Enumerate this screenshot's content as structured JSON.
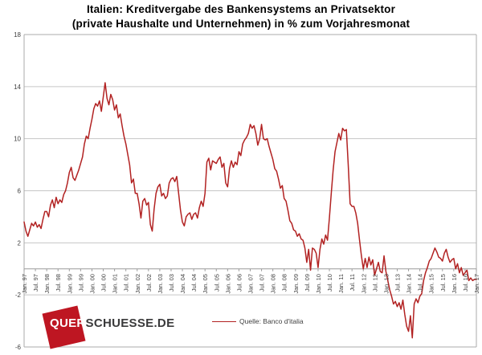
{
  "title": {
    "line1": "Italien: Kreditvergabe des Bankensystems an Privatsektor",
    "line2": "(private Haushalte und Unternehmen) in % zum Vorjahresmonat"
  },
  "legend": {
    "label": "Quelle: Banco d'italia"
  },
  "logo": {
    "part1": "QUER",
    "part2": "SCHUESSE.DE"
  },
  "colors": {
    "series": "#B22222",
    "grid": "#C6C6C6",
    "border": "#ABABAB",
    "zero_axis": "#9A9A9A",
    "axis_text": "#404040",
    "title_text": "#000000",
    "logo_red": "#BE1622",
    "logo_text": "#3A3A3B"
  },
  "chart_data": {
    "type": "line",
    "title": "Italien: Kreditvergabe des Bankensystems an Privatsektor (private Haushalte und Unternehmen) in % zum Vorjahresmonat",
    "xlabel": "",
    "ylabel": "",
    "ylim": [
      -6,
      18
    ],
    "y_ticks": [
      18,
      14,
      10,
      6,
      2,
      -2,
      -6
    ],
    "y_tick_labels": [
      "18",
      "14",
      "10",
      "6",
      "2",
      "-2",
      "-6"
    ],
    "grid": "horizontal",
    "legend_position": "bottom-center",
    "frequency": "monthly",
    "x_start": "Jan. 97",
    "x_end": "Jan. 17",
    "x_tick_labels": [
      "Jan. 97",
      "Jul. 97",
      "Jan. 98",
      "Jul. 98",
      "Jan. 99",
      "Jul. 99",
      "Jan. 00",
      "Jul. 00",
      "Jan. 01",
      "Jul. 01",
      "Jan. 02",
      "Jul. 02",
      "Jan. 03",
      "Jul. 03",
      "Jan. 04",
      "Jul. 04",
      "Jan. 05",
      "Jul. 05",
      "Jan. 06",
      "Jul. 06",
      "Jan. 07",
      "Jul. 07",
      "Jan. 08",
      "Jul. 08",
      "Jan. 09",
      "Jul. 09",
      "Jan. 10",
      "Jul. 10",
      "Jan. 11",
      "Jul. 11",
      "Jan. 12",
      "Jul. 12",
      "Jan. 13",
      "Jul. 13",
      "Jan. 14",
      "Jul. 14",
      "Jan. 15",
      "Jul. 15",
      "Jan. 16",
      "Jul. 16",
      "Jan. 17"
    ],
    "x_ticks_every_n_months": 6,
    "series": [
      {
        "name": "Quelle: Banco d'italia",
        "color": "#B22222",
        "values": [
          3.6,
          2.9,
          2.5,
          3.0,
          3.5,
          3.3,
          3.6,
          3.2,
          3.4,
          3.1,
          3.8,
          4.4,
          4.4,
          4.0,
          4.9,
          5.3,
          4.7,
          5.5,
          5.0,
          5.3,
          5.1,
          5.7,
          6.0,
          6.6,
          7.4,
          7.8,
          7.0,
          6.8,
          7.2,
          7.6,
          8.1,
          8.6,
          9.6,
          10.2,
          10.0,
          10.8,
          11.5,
          12.3,
          12.7,
          12.5,
          12.9,
          12.1,
          13.2,
          14.3,
          13.1,
          12.6,
          13.4,
          13.0,
          12.2,
          12.6,
          11.6,
          11.9,
          11.0,
          10.2,
          9.6,
          8.8,
          8.0,
          6.6,
          6.9,
          5.8,
          5.8,
          5.0,
          3.9,
          5.2,
          5.4,
          4.9,
          5.1,
          3.4,
          2.9,
          4.6,
          5.8,
          6.3,
          6.5,
          5.6,
          5.8,
          5.4,
          5.6,
          6.6,
          6.9,
          7.0,
          6.7,
          7.1,
          5.8,
          4.5,
          3.6,
          3.3,
          4.0,
          4.2,
          4.3,
          3.8,
          4.2,
          4.3,
          3.9,
          4.7,
          5.2,
          4.8,
          5.8,
          8.2,
          8.5,
          7.6,
          8.3,
          8.2,
          8.1,
          8.4,
          8.6,
          7.8,
          8.1,
          6.6,
          6.3,
          7.7,
          8.3,
          7.8,
          8.2,
          8.0,
          9.0,
          8.7,
          9.6,
          9.9,
          10.1,
          10.4,
          11.1,
          10.8,
          11.0,
          10.4,
          9.5,
          10.0,
          11.1,
          10.0,
          9.9,
          10.0,
          9.4,
          8.9,
          8.4,
          7.7,
          7.5,
          6.9,
          6.2,
          6.4,
          5.4,
          5.2,
          4.5,
          3.7,
          3.5,
          3.0,
          2.9,
          2.5,
          2.7,
          2.3,
          2.2,
          1.6,
          0.5,
          1.5,
          -0.1,
          1.6,
          1.5,
          1.2,
          0.1,
          1.5,
          2.3,
          1.9,
          2.6,
          2.2,
          3.9,
          5.8,
          7.6,
          9.0,
          9.7,
          10.4,
          9.9,
          10.8,
          10.6,
          10.7,
          8.0,
          5.0,
          4.8,
          4.8,
          4.3,
          3.5,
          2.2,
          1.0,
          0.0,
          0.8,
          0.1,
          0.9,
          0.3,
          0.7,
          -0.5,
          0.0,
          0.5,
          -0.2,
          -0.3,
          1.0,
          -0.2,
          -0.9,
          -1.6,
          -2.1,
          -2.7,
          -2.5,
          -2.9,
          -2.6,
          -3.1,
          -2.4,
          -3.5,
          -4.4,
          -4.8,
          -3.6,
          -5.3,
          -2.7,
          -2.3,
          -2.6,
          -2.1,
          -1.9,
          -0.9,
          -0.3,
          0.1,
          0.6,
          0.8,
          1.2,
          1.6,
          1.3,
          0.9,
          0.8,
          0.6,
          1.2,
          1.5,
          0.9,
          0.5,
          0.7,
          0.8,
          0.0,
          0.4,
          -0.3,
          0.1,
          -0.5,
          -0.3,
          -0.1,
          -0.9,
          -0.7,
          -0.9,
          -0.8,
          -0.8
        ]
      }
    ]
  }
}
